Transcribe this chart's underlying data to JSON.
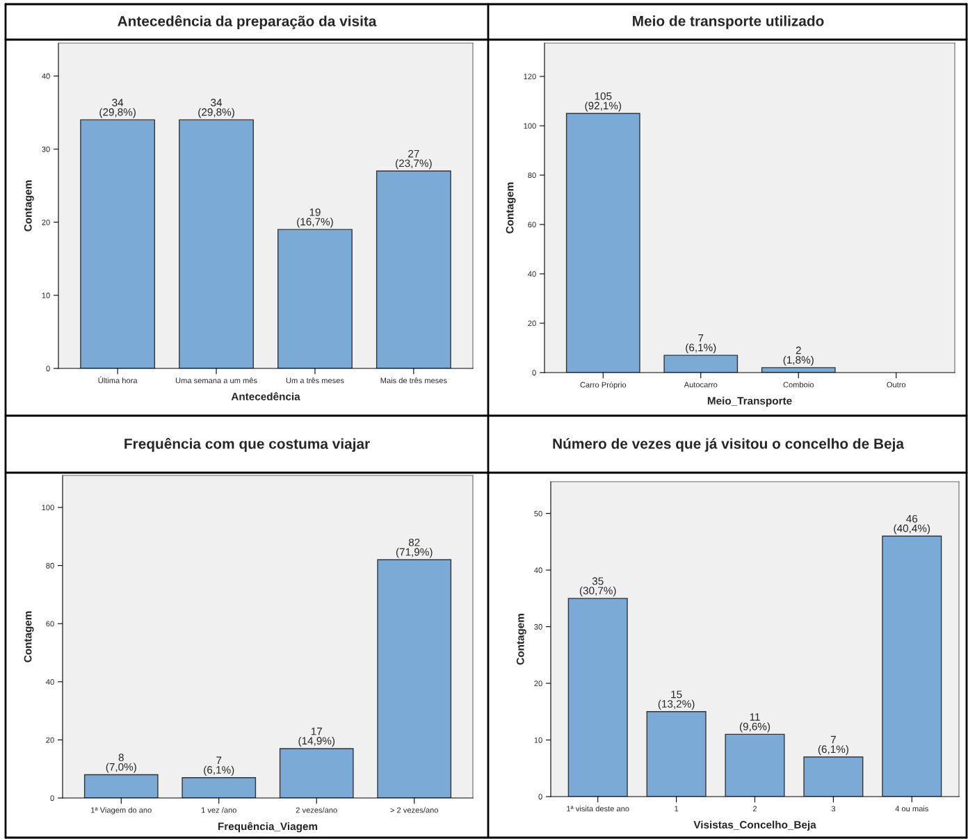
{
  "chart_data": [
    {
      "type": "bar",
      "title": "Antecedência da preparação da visita",
      "xlabel": "Antecedência",
      "ylabel": "Contagem",
      "categories": [
        "Última hora",
        "Uma semana a um mês",
        "Um a três meses",
        "Mais de três meses"
      ],
      "values": [
        34,
        34,
        19,
        27
      ],
      "color": "#7baad6",
      "value_labels": [
        "34\n(29,8%)",
        "34\n(29,8%)",
        "19\n(16,7%)",
        "27\n(23,7%)"
      ],
      "ylim": [
        0,
        44.5
      ],
      "yticks": [
        0,
        10,
        20,
        30,
        40
      ],
      "grid": false
    },
    {
      "type": "bar",
      "title": "Meio de transporte utilizado",
      "xlabel": "Meio_Transporte",
      "ylabel": "Contagem",
      "categories": [
        "Carro Próprio",
        "Autocarro",
        "Comboio",
        "Outro"
      ],
      "values": [
        105,
        7,
        2,
        0
      ],
      "color": "#7baad6",
      "value_labels": [
        "105\n(92,1%)",
        "7\n(6,1%)",
        "2\n(1,8%)",
        null
      ],
      "ylim": [
        0,
        133.5
      ],
      "yticks": [
        0,
        20,
        40,
        60,
        80,
        100,
        120
      ],
      "grid": false
    },
    {
      "type": "bar",
      "title": "Frequência com que costuma viajar",
      "xlabel": "Frequência_Viagem",
      "ylabel": "Contagem",
      "categories": [
        "1ª Viagem do ano",
        "1 vez /ano",
        "2 vezes/ano",
        "> 2 vezes/ano"
      ],
      "values": [
        8,
        7,
        17,
        82
      ],
      "color": "#7baad6",
      "value_labels": [
        "8\n(7,0%)",
        "7\n(6,1%)",
        "17\n(14,9%)",
        "82\n(71,9%)"
      ],
      "ylim": [
        0,
        111
      ],
      "yticks": [
        0,
        20,
        40,
        60,
        80,
        100
      ],
      "grid": false
    },
    {
      "type": "bar",
      "title": "Número de vezes que já visitou o concelho de Beja",
      "xlabel": "Visistas_Concelho_Beja",
      "ylabel": "Contagem",
      "categories": [
        "1ª visita deste ano",
        "1",
        "2",
        "3",
        "4 ou mais"
      ],
      "values": [
        35,
        15,
        11,
        7,
        46
      ],
      "color": "#7baad6",
      "value_labels": [
        "35\n(30,7%)",
        "15\n(13,2%)",
        "11\n(9,6%)",
        "7\n(6,1%)",
        "46\n(40,4%)"
      ],
      "ylim": [
        0,
        55.6
      ],
      "yticks": [
        0,
        10,
        20,
        30,
        40,
        50
      ],
      "grid": false
    }
  ]
}
